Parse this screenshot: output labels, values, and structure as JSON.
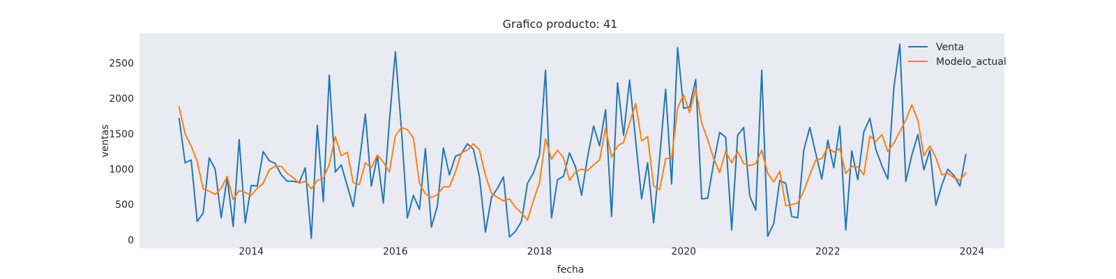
{
  "chart_data": {
    "type": "line",
    "title": "Grafico producto: 41",
    "xlabel": "fecha",
    "ylabel": "ventas",
    "xlim": [
      2012.45,
      2024.45
    ],
    "ylim": [
      -120,
      2920
    ],
    "x_ticks": [
      2014,
      2016,
      2018,
      2020,
      2022,
      2024
    ],
    "x_tick_labels": [
      "2014",
      "2016",
      "2018",
      "2020",
      "2022",
      "2024"
    ],
    "y_ticks": [
      0,
      500,
      1000,
      1500,
      2000,
      2500
    ],
    "y_tick_labels": [
      "0",
      "500",
      "1000",
      "1500",
      "2000",
      "2500"
    ],
    "grid": false,
    "legend_position": "top-right",
    "x_start_year": 2013,
    "x_step_years": 0.08333,
    "series": [
      {
        "name": "Venta",
        "color": "#1f77b4",
        "values": [
          1720,
          1090,
          1130,
          260,
          380,
          1160,
          1000,
          310,
          880,
          190,
          1420,
          240,
          770,
          760,
          1250,
          1120,
          1080,
          920,
          830,
          830,
          810,
          1020,
          20,
          1620,
          540,
          2330,
          960,
          1060,
          760,
          470,
          1100,
          1780,
          760,
          1190,
          520,
          1670,
          2660,
          1580,
          310,
          630,
          430,
          1290,
          180,
          480,
          1300,
          920,
          1180,
          1220,
          1360,
          1280,
          890,
          110,
          600,
          730,
          890,
          40,
          120,
          260,
          800,
          950,
          1200,
          2400,
          310,
          850,
          900,
          1230,
          1030,
          630,
          1170,
          1610,
          1330,
          1840,
          330,
          2220,
          1480,
          2260,
          1410,
          580,
          1090,
          240,
          1160,
          2130,
          790,
          2720,
          1860,
          1880,
          2270,
          580,
          590,
          1090,
          1520,
          1450,
          140,
          1480,
          1590,
          620,
          420,
          2400,
          50,
          230,
          840,
          800,
          330,
          310,
          1270,
          1590,
          1220,
          860,
          1410,
          1020,
          1610,
          140,
          1260,
          850,
          1530,
          1720,
          1280,
          1050,
          860,
          2150,
          2770,
          830,
          1200,
          1490,
          990,
          1270,
          490,
          780,
          1000,
          910,
          760,
          1210
        ]
      },
      {
        "name": "Modelo_actual",
        "color": "#ff7f0e",
        "values": [
          1880,
          1500,
          1330,
          1110,
          720,
          690,
          640,
          730,
          900,
          570,
          700,
          670,
          630,
          730,
          800,
          990,
          1040,
          1040,
          940,
          880,
          800,
          830,
          720,
          840,
          870,
          1070,
          1460,
          1190,
          1240,
          810,
          780,
          1090,
          1020,
          1200,
          1100,
          960,
          1470,
          1590,
          1560,
          1440,
          800,
          650,
          600,
          640,
          750,
          750,
          960,
          1230,
          1270,
          1360,
          1270,
          910,
          660,
          600,
          550,
          580,
          460,
          380,
          280,
          560,
          810,
          1430,
          1140,
          1270,
          1160,
          840,
          960,
          1000,
          980,
          1060,
          1130,
          1580,
          1170,
          1330,
          1380,
          1650,
          1930,
          1400,
          1460,
          760,
          710,
          1150,
          1150,
          1870,
          2050,
          1800,
          2140,
          1650,
          1420,
          1150,
          950,
          1250,
          1090,
          1250,
          1080,
          1050,
          1080,
          1270,
          940,
          820,
          970,
          480,
          500,
          520,
          690,
          920,
          1130,
          1150,
          1310,
          1240,
          1290,
          940,
          1040,
          1030,
          920,
          1470,
          1390,
          1490,
          1250,
          1370,
          1530,
          1700,
          1910,
          1690,
          1190,
          1330,
          1160,
          920,
          940,
          880,
          840,
          950
        ]
      }
    ]
  }
}
